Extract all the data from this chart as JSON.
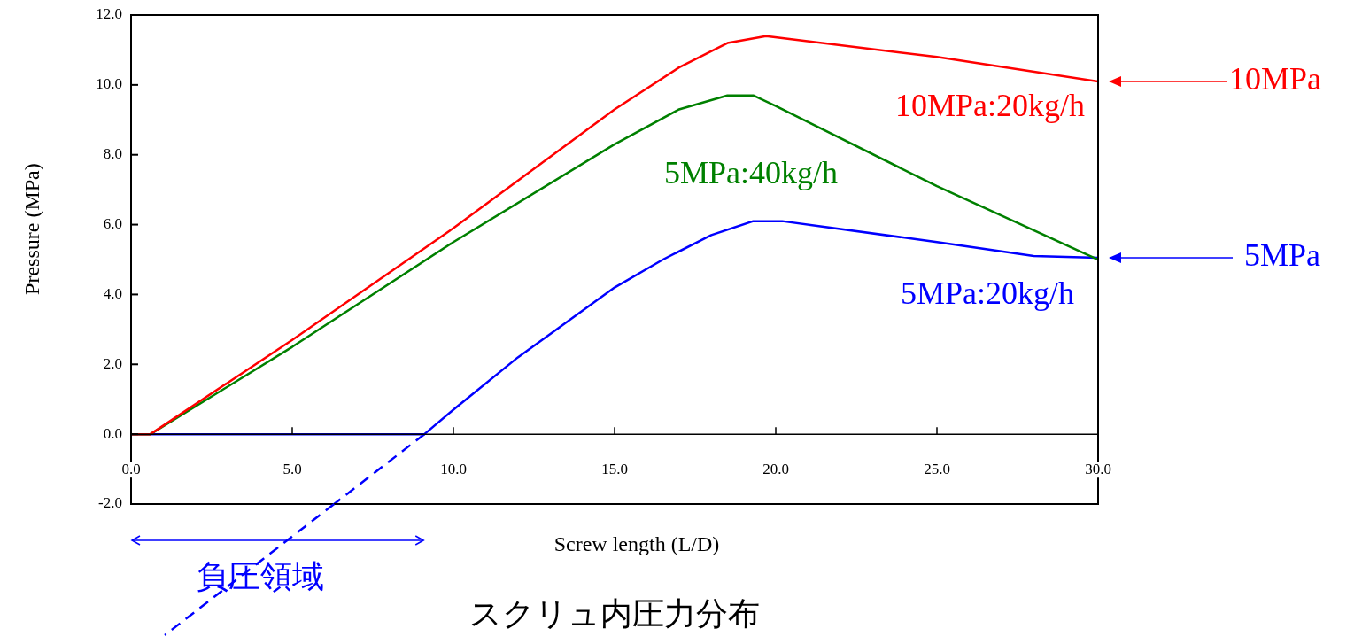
{
  "chart_data": {
    "type": "line",
    "title": "スクリュ内圧力分布",
    "xlabel": "Screw length (L/D)",
    "ylabel": "Pressure (MPa)",
    "xlim": [
      0,
      30
    ],
    "ylim": [
      -2,
      12
    ],
    "xticks": [
      {
        "value": 0,
        "label": "0.0"
      },
      {
        "value": 5,
        "label": "5.0"
      },
      {
        "value": 10,
        "label": "10.0"
      },
      {
        "value": 15,
        "label": "15.0"
      },
      {
        "value": 20,
        "label": "20.0"
      },
      {
        "value": 25,
        "label": "25.0"
      },
      {
        "value": 30,
        "label": "30.0"
      }
    ],
    "yticks": [
      {
        "value": -2,
        "label": "-2.0"
      },
      {
        "value": 0,
        "label": "0.0"
      },
      {
        "value": 2,
        "label": "2.0"
      },
      {
        "value": 4,
        "label": "4.0"
      },
      {
        "value": 6,
        "label": "6.0"
      },
      {
        "value": 8,
        "label": "8.0"
      },
      {
        "value": 10,
        "label": "10.0"
      },
      {
        "value": 12,
        "label": "12.0"
      }
    ],
    "line_style": "solid",
    "marker": "none",
    "series": [
      {
        "name": "10MPa:20kg/h",
        "color": "#ff0000",
        "x": [
          0,
          0.6,
          5,
          10,
          15,
          17,
          18.5,
          19.7,
          25,
          30
        ],
        "values": [
          0,
          0,
          2.7,
          5.9,
          9.3,
          10.5,
          11.2,
          11.4,
          10.8,
          10.1
        ]
      },
      {
        "name": "5MPa:40kg/h",
        "color": "#008000",
        "x": [
          0,
          0.6,
          5,
          10,
          15,
          17,
          18.5,
          19.3,
          20,
          25,
          30
        ],
        "values": [
          0,
          0,
          2.5,
          5.5,
          8.3,
          9.3,
          9.7,
          9.7,
          9.4,
          7.1,
          5.0
        ]
      },
      {
        "name": "5MPa:20kg/h",
        "color": "#0000ff",
        "x": [
          0,
          9.1,
          10,
          12,
          15,
          16.5,
          18,
          19.3,
          20.2,
          25,
          28,
          30
        ],
        "values": [
          0,
          0,
          0.7,
          2.2,
          4.2,
          5.0,
          5.7,
          6.1,
          6.1,
          5.5,
          5.1,
          5.05
        ]
      },
      {
        "type": "line",
        "color": "#0000ff",
        "line_style": "dashed",
        "x": [
          9.1,
          6.3
        ],
        "values": [
          0,
          -2
        ]
      }
    ],
    "annotations": [
      "10MPa",
      "5MPa",
      "負圧領域"
    ]
  }
}
